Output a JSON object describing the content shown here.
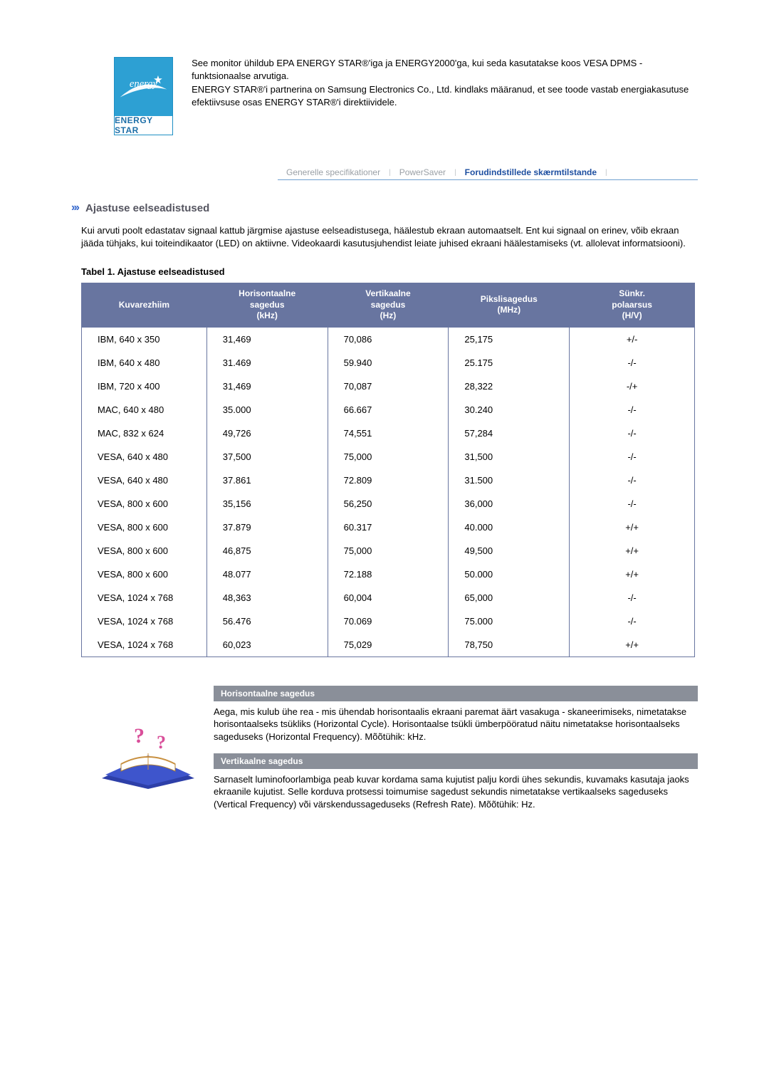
{
  "intro": {
    "logo_script": "energy",
    "logo_label": "ENERGY STAR",
    "paragraphs": [
      "See monitor ühildub EPA ENERGY STAR®'iga ja ENERGY2000'ga, kui seda kasutatakse koos VESA DPMS -funktsionaalse arvutiga.",
      "ENERGY STAR®'i partnerina on Samsung Electronics Co., Ltd. kindlaks määranud, et see toode vastab energiakasutuse efektiivsuse osas ENERGY STAR®'i direktiividele."
    ]
  },
  "tabs": {
    "items": [
      {
        "label": "Generelle specifikationer",
        "active": false
      },
      {
        "label": "PowerSaver",
        "active": false
      },
      {
        "label": "Forudindstillede skærmtilstande",
        "active": true
      }
    ]
  },
  "section": {
    "title": "Ajastuse eelseadistused",
    "description": "Kui arvuti poolt edastatav signaal kattub järgmise ajastuse eelseadistusega, häälestub ekraan automaatselt. Ent kui signaal on erinev, võib ekraan jääda tühjaks, kui toiteindikaator (LED) on aktiivne. Videokaardi kasutusjuhendist leiate juhised ekraani häälestamiseks (vt. allolevat informatsiooni).",
    "table_caption": "Tabel 1. Ajastuse eelseadistused"
  },
  "table": {
    "header_bg": "#6875a0",
    "border_color": "#6875a0",
    "columns": [
      "Kuvarezhiim",
      "Horisontaalne sagedus (kHz)",
      "Vertikaalne sagedus (Hz)",
      "Pikslisagedus (MHz)",
      "Sünkr. polaarsus (H/V)"
    ],
    "rows": [
      [
        "IBM, 640 x 350",
        "31,469",
        "70,086",
        "25,175",
        "+/-"
      ],
      [
        "IBM, 640 x 480",
        "31.469",
        "59.940",
        "25.175",
        "-/-"
      ],
      [
        "IBM, 720 x 400",
        "31,469",
        "70,087",
        "28,322",
        "-/+"
      ],
      [
        "MAC, 640 x 480",
        "35.000",
        "66.667",
        "30.240",
        "-/-"
      ],
      [
        "MAC, 832 x 624",
        "49,726",
        "74,551",
        "57,284",
        "-/-"
      ],
      [
        "VESA, 640 x 480",
        "37,500",
        "75,000",
        "31,500",
        "-/-"
      ],
      [
        "VESA, 640 x 480",
        "37.861",
        "72.809",
        "31.500",
        "-/-"
      ],
      [
        "VESA, 800 x 600",
        "35,156",
        "56,250",
        "36,000",
        "-/-"
      ],
      [
        "VESA, 800 x 600",
        "37.879",
        "60.317",
        "40.000",
        "+/+"
      ],
      [
        "VESA, 800 x 600",
        "46,875",
        "75,000",
        "49,500",
        "+/+"
      ],
      [
        "VESA, 800 x 600",
        "48.077",
        "72.188",
        "50.000",
        "+/+"
      ],
      [
        "VESA, 1024 x 768",
        "48,363",
        "60,004",
        "65,000",
        "-/-"
      ],
      [
        "VESA, 1024 x 768",
        "56.476",
        "70.069",
        "75.000",
        "-/-"
      ],
      [
        "VESA, 1024 x 768",
        "60,023",
        "75,029",
        "78,750",
        "+/+"
      ]
    ]
  },
  "definitions": {
    "header_bg": "#8a8f99",
    "items": [
      {
        "title": "Horisontaalne sagedus",
        "body": "Aega, mis kulub ühe rea - mis ühendab horisontaalis ekraani paremat äärt vasakuga - skaneerimiseks, nimetatakse horisontaalseks tsükliks (Horizontal Cycle). Horisontaalse tsükli ümberpööratud näitu nimetatakse horisontaalseks sageduseks (Horizontal Frequency). Mõõtühik: kHz."
      },
      {
        "title": "Vertikaalne sagedus",
        "body": "Sarnaselt luminofoorlambiga peab kuvar kordama sama kujutist palju kordi ühes sekundis, kuvamaks kasutaja jaoks ekraanile kujutist. Selle korduva protsessi toimumise sagedust sekundis nimetatakse vertikaalseks sageduseks (Vertical Frequency) või värskendussageduseks (Refresh Rate). Mõõtühik: Hz."
      }
    ]
  }
}
